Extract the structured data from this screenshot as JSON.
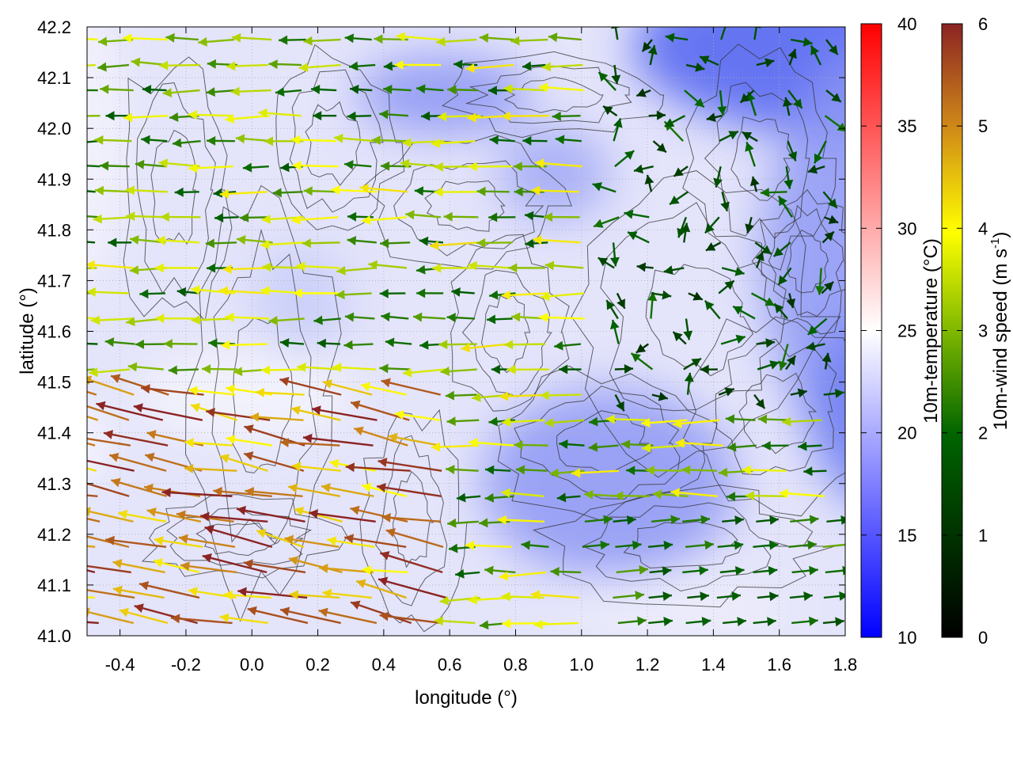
{
  "chart_data": {
    "type": "vector-field",
    "x_axis": {
      "label": "longitude (°)",
      "range": [
        -0.5,
        1.8
      ],
      "ticks": [
        -0.4,
        -0.2,
        0.0,
        0.2,
        0.4,
        0.6,
        0.8,
        1.0,
        1.2,
        1.4,
        1.6,
        1.8
      ],
      "tick_labels": [
        "-0.4",
        "-0.2",
        "0.0",
        "0.2",
        "0.4",
        "0.6",
        "0.8",
        "1.0",
        "1.2",
        "1.4",
        "1.6",
        "1.8"
      ]
    },
    "y_axis": {
      "label": "latitude (°)",
      "range": [
        41.0,
        42.2
      ],
      "ticks": [
        41.0,
        41.1,
        41.2,
        41.3,
        41.4,
        41.5,
        41.6,
        41.7,
        41.8,
        41.9,
        42.0,
        42.1,
        42.2
      ],
      "tick_labels": [
        "41.0",
        "41.1",
        "41.2",
        "41.3",
        "41.4",
        "41.5",
        "41.6",
        "41.7",
        "41.8",
        "41.9",
        "42.0",
        "42.1",
        "42.2"
      ]
    },
    "grid": true,
    "temperature_colorbar": {
      "label": "10m-temperature (°C)",
      "range": [
        10,
        40
      ],
      "ticks": [
        10,
        15,
        20,
        25,
        30,
        35,
        40
      ],
      "tick_labels": [
        "10",
        "15",
        "20",
        "25",
        "30",
        "35",
        "40"
      ],
      "colors": [
        "#0000ff",
        "#ffffff",
        "#ff0000"
      ]
    },
    "wind_colorbar": {
      "label": "10m-wind speed (m s",
      "label_superscript": "-1",
      "label_suffix": ")",
      "range": [
        0,
        6
      ],
      "ticks": [
        0,
        1,
        2,
        3,
        4,
        5,
        6
      ],
      "tick_labels": [
        "0",
        "1",
        "2",
        "3",
        "4",
        "5",
        "6"
      ],
      "colors": [
        "#000000",
        "#006400",
        "#7fb800",
        "#ffff00",
        "#d08a18",
        "#8b2323"
      ]
    },
    "wind_field_summary": [
      {
        "lon_range": [
          -0.5,
          0.6
        ],
        "lat_range": [
          41.0,
          41.5
        ],
        "direction": "westward",
        "speed": 5.2
      },
      {
        "lon_range": [
          -0.5,
          1.0
        ],
        "lat_range": [
          41.5,
          42.2
        ],
        "direction": "westward",
        "speed": 3.0
      },
      {
        "lon_range": [
          1.0,
          1.8
        ],
        "lat_range": [
          41.0,
          41.2
        ],
        "direction": "eastward",
        "speed": 2.2
      },
      {
        "lon_range": [
          1.0,
          1.8
        ],
        "lat_range": [
          41.5,
          42.2
        ],
        "direction": "variable",
        "speed": 1.0
      }
    ]
  }
}
